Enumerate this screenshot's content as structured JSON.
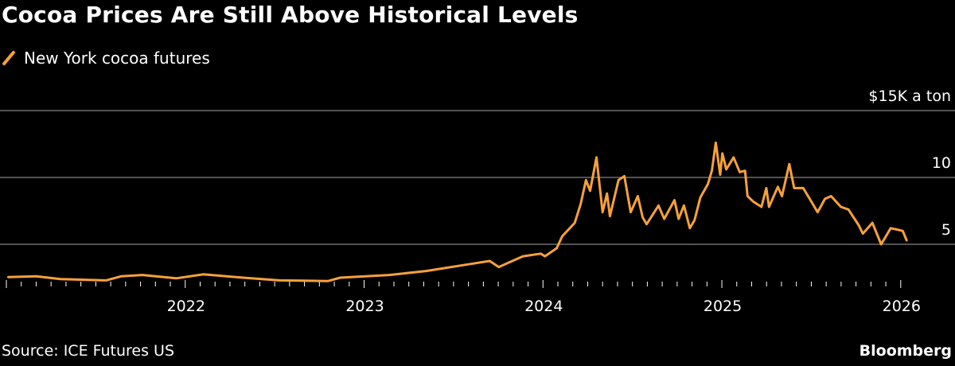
{
  "title": "Cocoa Prices Are Still Above Historical Levels",
  "source": "Source: ICE Futures US",
  "brand": "Bloomberg",
  "chart_data": {
    "type": "line",
    "title": "Cocoa Prices Are Still Above Historical Levels",
    "ylabel": "$15K a ton",
    "unit_note": "thousand USD per ton",
    "ylim": [
      0,
      15
    ],
    "yticks": [
      {
        "value": 5,
        "label": "5"
      },
      {
        "value": 10,
        "label": "10"
      },
      {
        "value": 15,
        "label": "$15K a ton"
      }
    ],
    "xticks": [
      "2022",
      "2023",
      "2024",
      "2025",
      "2026"
    ],
    "xlim": [
      "2021-01-01",
      "2026-01-31"
    ],
    "grid": true,
    "legend_position": "top-left",
    "colors": {
      "series": "#f7a13a",
      "grid": "#6e6e6e",
      "background": "#000000"
    },
    "series": [
      {
        "name": "New York cocoa futures",
        "points": [
          [
            "2021-01-05",
            2.55
          ],
          [
            "2021-03-01",
            2.6
          ],
          [
            "2021-04-20",
            2.4
          ],
          [
            "2021-07-22",
            2.3
          ],
          [
            "2021-08-22",
            2.6
          ],
          [
            "2021-10-05",
            2.7
          ],
          [
            "2021-12-13",
            2.45
          ],
          [
            "2022-02-07",
            2.75
          ],
          [
            "2022-04-28",
            2.5
          ],
          [
            "2022-07-11",
            2.3
          ],
          [
            "2022-10-19",
            2.25
          ],
          [
            "2022-11-13",
            2.5
          ],
          [
            "2023-02-22",
            2.7
          ],
          [
            "2023-05-06",
            3.0
          ],
          [
            "2023-08-01",
            3.5
          ],
          [
            "2023-09-14",
            3.75
          ],
          [
            "2023-10-02",
            3.3
          ],
          [
            "2023-11-21",
            4.1
          ],
          [
            "2023-12-27",
            4.3
          ],
          [
            "2024-01-05",
            4.1
          ],
          [
            "2024-01-29",
            4.7
          ],
          [
            "2024-02-10",
            5.6
          ],
          [
            "2024-03-05",
            6.6
          ],
          [
            "2024-03-17",
            8.0
          ],
          [
            "2024-03-28",
            9.8
          ],
          [
            "2024-04-06",
            9.0
          ],
          [
            "2024-04-19",
            11.5
          ],
          [
            "2024-05-01",
            7.4
          ],
          [
            "2024-05-10",
            8.8
          ],
          [
            "2024-05-16",
            7.1
          ],
          [
            "2024-06-03",
            9.8
          ],
          [
            "2024-06-15",
            10.1
          ],
          [
            "2024-06-28",
            7.4
          ],
          [
            "2024-07-12",
            8.6
          ],
          [
            "2024-07-22",
            7.0
          ],
          [
            "2024-07-30",
            6.5
          ],
          [
            "2024-08-24",
            7.9
          ],
          [
            "2024-09-05",
            6.9
          ],
          [
            "2024-09-26",
            8.3
          ],
          [
            "2024-10-04",
            6.9
          ],
          [
            "2024-10-15",
            7.9
          ],
          [
            "2024-10-27",
            6.2
          ],
          [
            "2024-11-06",
            6.8
          ],
          [
            "2024-11-18",
            8.5
          ],
          [
            "2024-12-03",
            9.5
          ],
          [
            "2024-12-11",
            10.5
          ],
          [
            "2024-12-19",
            12.6
          ],
          [
            "2024-12-28",
            10.2
          ],
          [
            "2025-01-02",
            11.8
          ],
          [
            "2025-01-10",
            10.6
          ],
          [
            "2025-01-25",
            11.5
          ],
          [
            "2025-02-07",
            10.4
          ],
          [
            "2025-02-18",
            10.5
          ],
          [
            "2025-02-23",
            8.6
          ],
          [
            "2025-03-04",
            8.2
          ],
          [
            "2025-03-21",
            7.8
          ],
          [
            "2025-03-31",
            9.2
          ],
          [
            "2025-04-06",
            7.8
          ],
          [
            "2025-04-24",
            9.3
          ],
          [
            "2025-05-02",
            8.6
          ],
          [
            "2025-05-17",
            11.0
          ],
          [
            "2025-05-27",
            9.2
          ],
          [
            "2025-06-15",
            9.2
          ],
          [
            "2025-07-01",
            8.2
          ],
          [
            "2025-07-14",
            7.4
          ],
          [
            "2025-07-29",
            8.4
          ],
          [
            "2025-08-11",
            8.6
          ],
          [
            "2025-08-31",
            7.8
          ],
          [
            "2025-09-16",
            7.6
          ],
          [
            "2025-10-07",
            6.4
          ],
          [
            "2025-10-15",
            5.8
          ],
          [
            "2025-11-04",
            6.6
          ],
          [
            "2025-11-22",
            5.0
          ],
          [
            "2025-12-11",
            6.2
          ],
          [
            "2025-12-24",
            6.1
          ],
          [
            "2026-01-05",
            6.0
          ],
          [
            "2026-01-13",
            5.3
          ]
        ]
      }
    ]
  }
}
